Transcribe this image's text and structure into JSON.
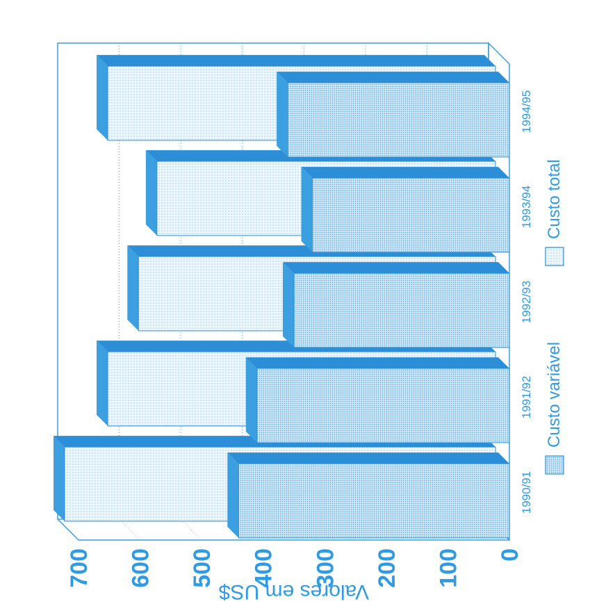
{
  "colors": {
    "accent": "#2e9be3",
    "face": "#dcedf8",
    "top": "#3b9fe0",
    "side": "#2b8ed6",
    "frame": "#3a9ee0",
    "text": "#2e9be3"
  },
  "chart_data": {
    "type": "bar",
    "orientation": "vertical (image rotated 90deg)",
    "three_d": true,
    "categories": [
      "1990/91",
      "1991/92",
      "1992/93",
      "1993/94",
      "1994/95"
    ],
    "series": [
      {
        "name": "Custo variável",
        "pattern": "dense-dots",
        "values": [
          440,
          410,
          350,
          320,
          360
        ]
      },
      {
        "name": "Custo total",
        "pattern": "light-dots",
        "values": [
          700,
          630,
          580,
          550,
          630
        ]
      }
    ],
    "ylabel": "Valores em US$",
    "xlabel": "",
    "ylim": [
      0,
      700
    ],
    "yticks": [
      0,
      100,
      200,
      300,
      400,
      500,
      600,
      700
    ],
    "grid": true,
    "legend_position": "bottom"
  }
}
